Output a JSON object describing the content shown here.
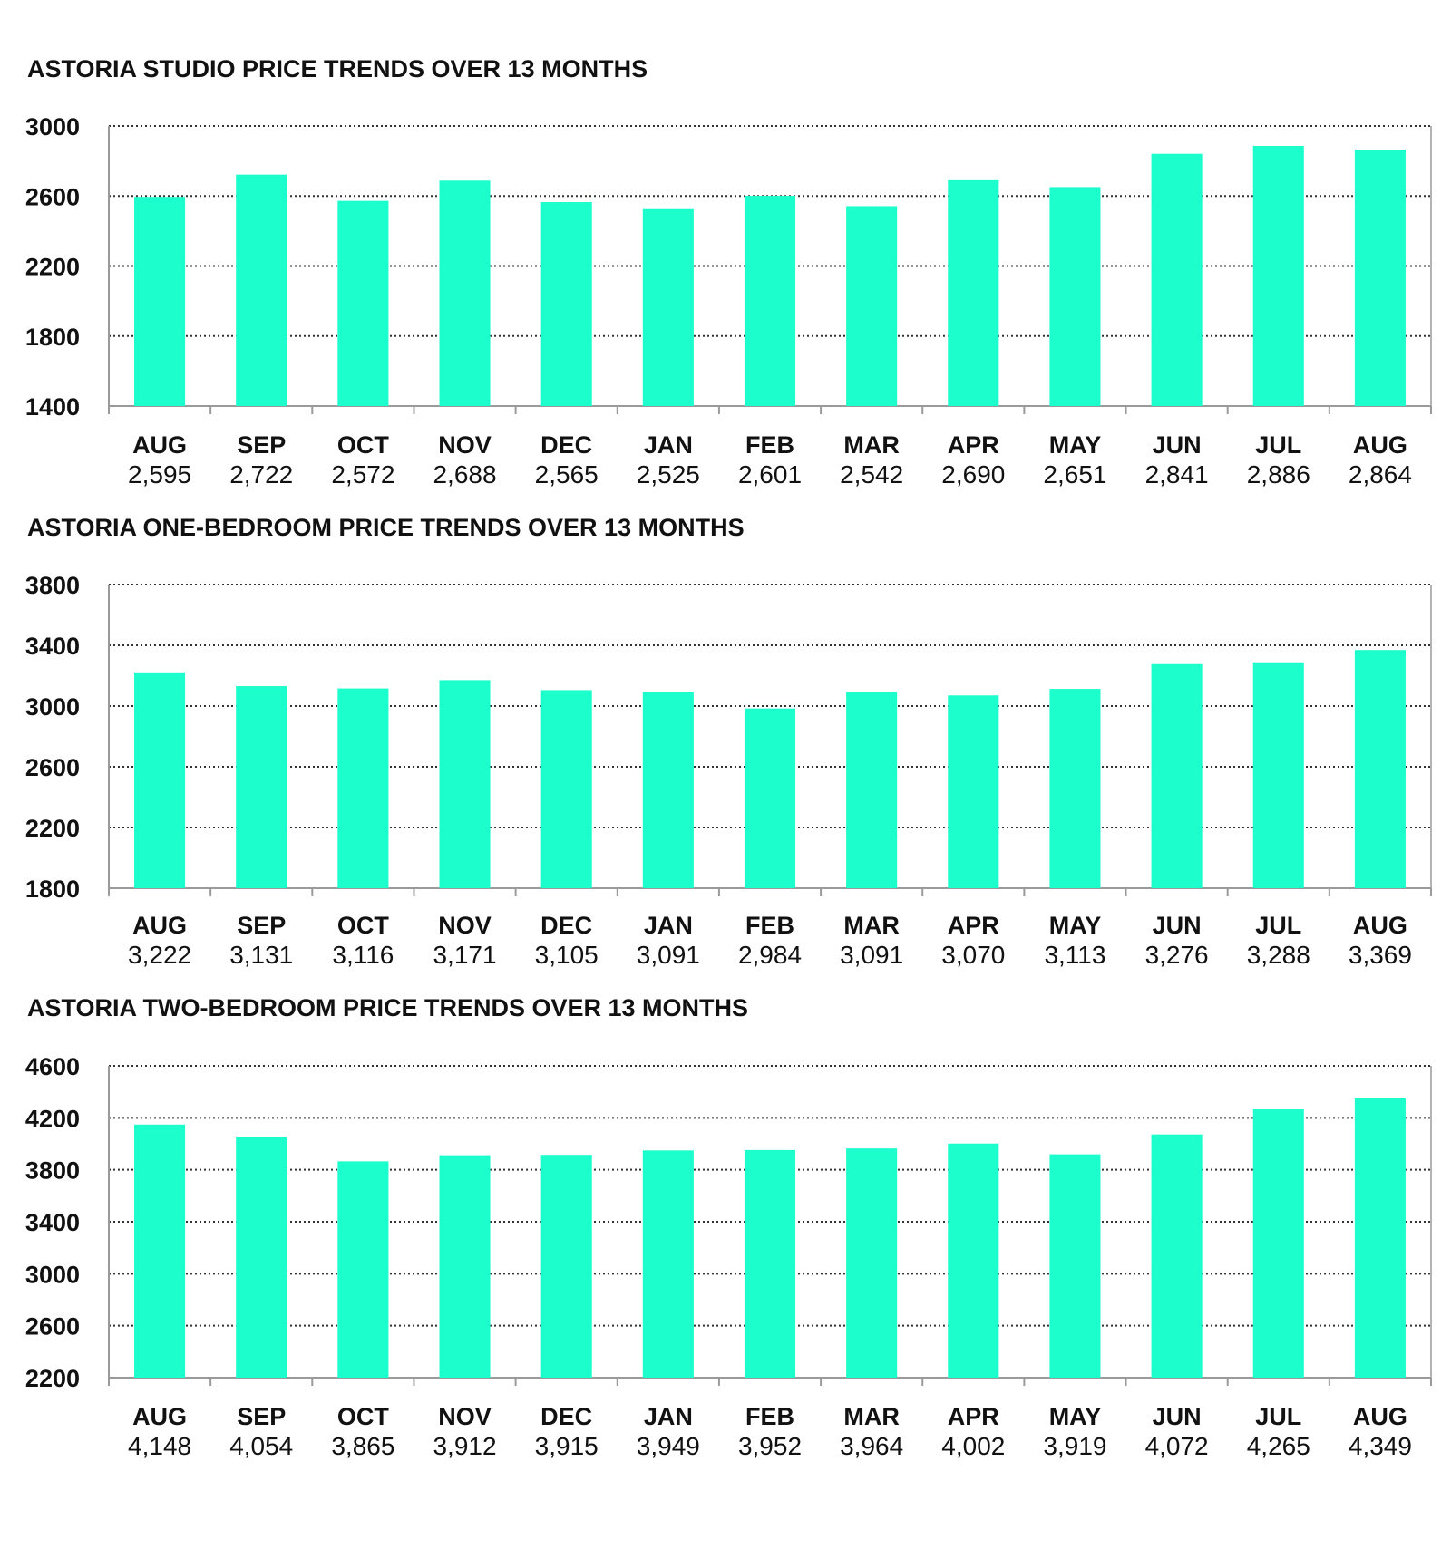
{
  "chart_data": [
    {
      "type": "bar",
      "title": "ASTORIA STUDIO PRICE TRENDS OVER 13 MONTHS",
      "categories": [
        "AUG",
        "SEP",
        "OCT",
        "NOV",
        "DEC",
        "JAN",
        "FEB",
        "MAR",
        "APR",
        "MAY",
        "JUN",
        "JUL",
        "AUG"
      ],
      "values": [
        2595,
        2722,
        2572,
        2688,
        2565,
        2525,
        2601,
        2542,
        2690,
        2651,
        2841,
        2886,
        2864
      ],
      "value_labels": [
        "2,595",
        "2,722",
        "2,572",
        "2,688",
        "2,565",
        "2,525",
        "2,601",
        "2,542",
        "2,690",
        "2,651",
        "2,841",
        "2,886",
        "2,864"
      ],
      "yticks": [
        "1400",
        "1800",
        "2200",
        "2600",
        "3000"
      ],
      "ylim": [
        1400,
        3000
      ],
      "grid": true,
      "bar_color": "#1CFFCC"
    },
    {
      "type": "bar",
      "title": "ASTORIA ONE-BEDROOM PRICE TRENDS OVER 13 MONTHS",
      "categories": [
        "AUG",
        "SEP",
        "OCT",
        "NOV",
        "DEC",
        "JAN",
        "FEB",
        "MAR",
        "APR",
        "MAY",
        "JUN",
        "JUL",
        "AUG"
      ],
      "values": [
        3222,
        3131,
        3116,
        3171,
        3105,
        3091,
        2984,
        3091,
        3070,
        3113,
        3276,
        3288,
        3369
      ],
      "value_labels": [
        "3,222",
        "3,131",
        "3,116",
        "3,171",
        "3,105",
        "3,091",
        "2,984",
        "3,091",
        "3,070",
        "3,113",
        "3,276",
        "3,288",
        "3,369"
      ],
      "yticks": [
        "1800",
        "2200",
        "2600",
        "3000",
        "3400",
        "3800"
      ],
      "ylim": [
        1800,
        3800
      ],
      "grid": true,
      "bar_color": "#1CFFCC"
    },
    {
      "type": "bar",
      "title": "ASTORIA TWO-BEDROOM PRICE TRENDS OVER 13 MONTHS",
      "categories": [
        "AUG",
        "SEP",
        "OCT",
        "NOV",
        "DEC",
        "JAN",
        "FEB",
        "MAR",
        "APR",
        "MAY",
        "JUN",
        "JUL",
        "AUG"
      ],
      "values": [
        4148,
        4054,
        3865,
        3912,
        3915,
        3949,
        3952,
        3964,
        4002,
        3919,
        4072,
        4265,
        4349
      ],
      "value_labels": [
        "4,148",
        "4,054",
        "3,865",
        "3,912",
        "3,915",
        "3,949",
        "3,952",
        "3,964",
        "4,002",
        "3,919",
        "4,072",
        "4,265",
        "4,349"
      ],
      "yticks": [
        "2200",
        "2600",
        "3000",
        "3400",
        "3800",
        "4200",
        "4600"
      ],
      "ylim": [
        2200,
        4600
      ],
      "grid": true,
      "bar_color": "#1CFFCC"
    }
  ]
}
